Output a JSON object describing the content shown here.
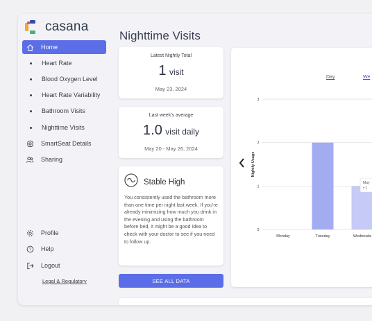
{
  "app": {
    "name": "casana"
  },
  "sidebar": {
    "items": [
      {
        "label": "Home",
        "icon": "home-icon",
        "active": true
      },
      {
        "label": "Heart Rate"
      },
      {
        "label": "Blood Oxygen Level"
      },
      {
        "label": "Heart Rate Variability"
      },
      {
        "label": "Bathroom Visits"
      },
      {
        "label": "Nighttime Visits"
      },
      {
        "label": "SmartSeat Details",
        "icon": "seat-icon"
      },
      {
        "label": "Sharing",
        "icon": "users-icon"
      }
    ],
    "bottom": [
      {
        "label": "Profile",
        "icon": "gear-icon"
      },
      {
        "label": "Help",
        "icon": "help-icon"
      },
      {
        "label": "Logout",
        "icon": "logout-icon"
      }
    ],
    "legal": "Legal & Regulatory"
  },
  "main": {
    "title": "Nighttime Visits",
    "latest": {
      "label": "Latest Nightly Total",
      "value": "1",
      "unit": "visit",
      "date": "May 23, 2024"
    },
    "average": {
      "label": "Last week's average",
      "value": "1.0",
      "unit": "visit daily",
      "date": "May 20 - May 26, 2024"
    },
    "status": {
      "title": "Stable High",
      "body": "You consistently used the bathroom more than one time per night last week. If you're already minimizing how much you drink in the evening and using the bathroom before bed, it might be a good idea to check with your doctor to see if you need to follow up."
    },
    "see_all": "SEE ALL DATA",
    "tabs": [
      "Day",
      "We"
    ],
    "tooltip": {
      "line1": "May",
      "line2": "• 1"
    }
  },
  "colors": {
    "accent": "#5b6ee8",
    "bar_dark": "#a3acf0",
    "bar_light": "#c5cbf6"
  },
  "chart_data": {
    "type": "bar",
    "categories": [
      "Monday",
      "Tuesday",
      "Wednesda"
    ],
    "values": [
      0,
      2,
      1
    ],
    "ylabel": "Nightly Usage",
    "yticks": [
      "0",
      "1",
      "2",
      "3"
    ],
    "ylim": [
      0,
      3
    ],
    "grid": true
  }
}
